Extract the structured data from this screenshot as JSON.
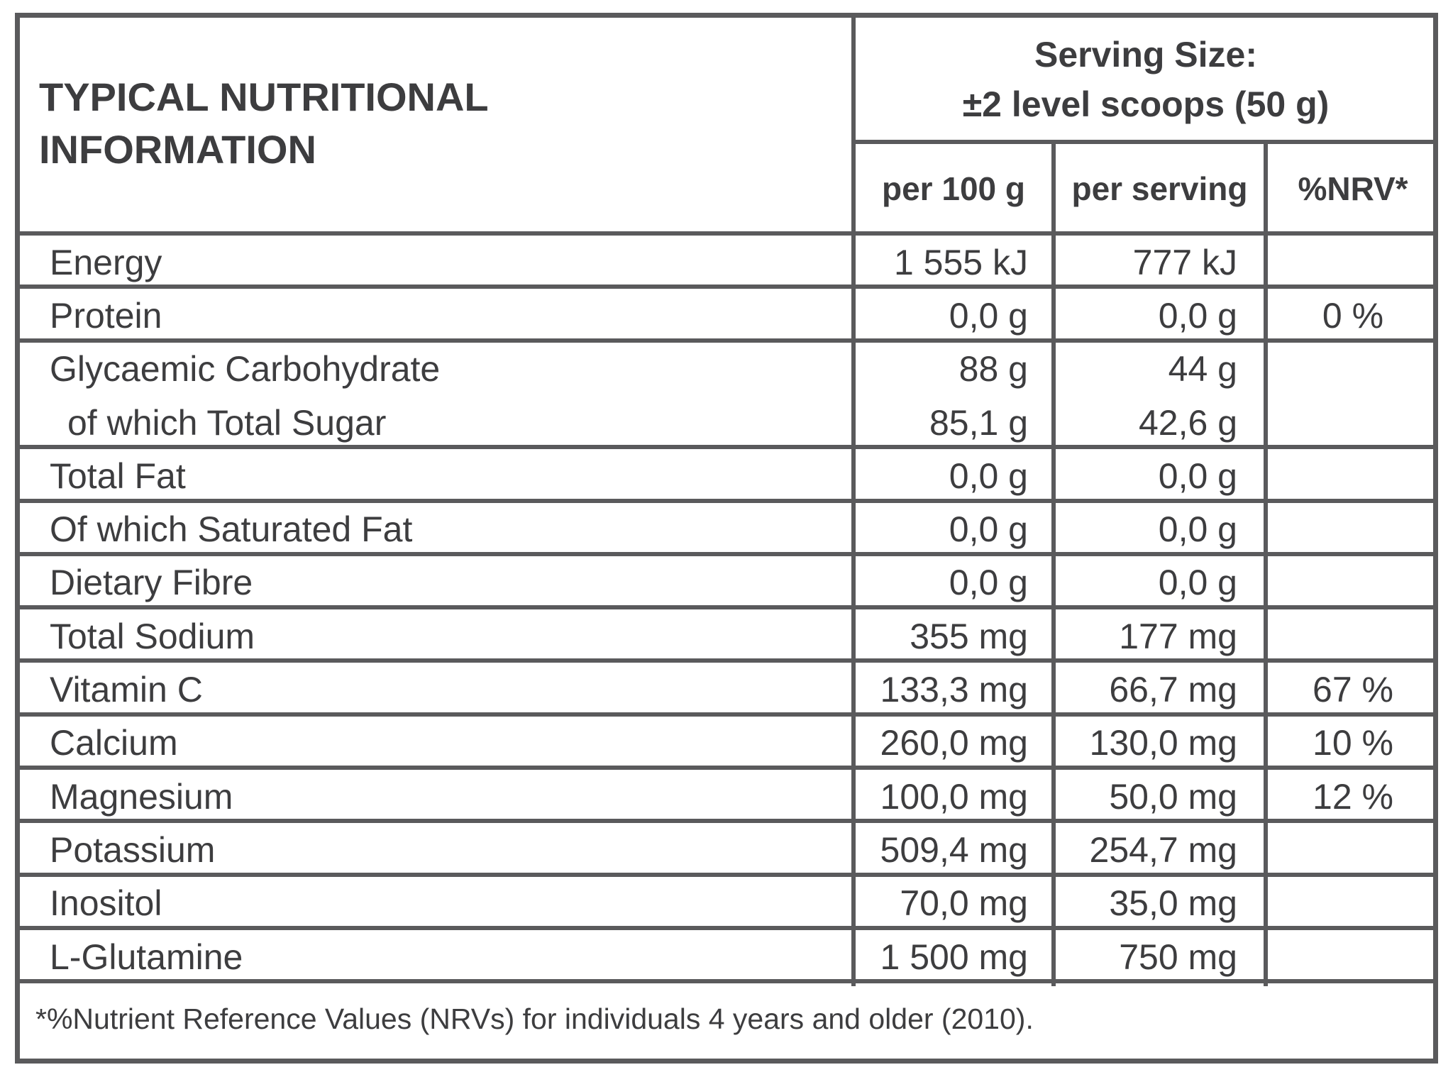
{
  "header": {
    "title": "TYPICAL NUTRITIONAL INFORMATION",
    "serving_size": [
      "Serving Size:",
      "±2 level scoops (50 g)"
    ],
    "columns": [
      "per 100 g",
      "per serving",
      "%NRV*"
    ]
  },
  "table": {
    "rows": [
      {
        "lines": [
          {
            "label": "Energy",
            "per_100g": "1 555 kJ",
            "per_serving": "777 kJ"
          }
        ]
      },
      {
        "lines": [
          {
            "label": "Protein",
            "per_100g": "0,0 g",
            "per_serving": "0,0 g",
            "nrv": "0 %"
          }
        ]
      },
      {
        "lines": [
          {
            "label": "Glycaemic Carbohydrate",
            "per_100g": "88 g",
            "per_serving": "44 g"
          },
          {
            "label": "of which Total Sugar",
            "per_100g": "85,1 g",
            "per_serving": "42,6 g"
          }
        ]
      },
      {
        "lines": [
          {
            "label": "Total Fat",
            "per_100g": "0,0 g",
            "per_serving": "0,0 g"
          }
        ]
      },
      {
        "lines": [
          {
            "label": "Of which Saturated Fat",
            "per_100g": "0,0 g",
            "per_serving": "0,0 g"
          }
        ]
      },
      {
        "lines": [
          {
            "label": "Dietary Fibre",
            "per_100g": "0,0 g",
            "per_serving": "0,0 g"
          }
        ]
      },
      {
        "lines": [
          {
            "label": "Total Sodium",
            "per_100g": "355 mg",
            "per_serving": "177 mg"
          }
        ]
      },
      {
        "lines": [
          {
            "label": "Vitamin C",
            "per_100g": "133,3 mg",
            "per_serving": "66,7 mg",
            "nrv": "67 %"
          }
        ]
      },
      {
        "lines": [
          {
            "label": "Calcium",
            "per_100g": "260,0 mg",
            "per_serving": "130,0 mg",
            "nrv": "10 %"
          }
        ]
      },
      {
        "lines": [
          {
            "label": "Magnesium",
            "per_100g": "100,0 mg",
            "per_serving": "50,0 mg",
            "nrv": "12 %"
          }
        ]
      },
      {
        "lines": [
          {
            "label": "Potassium",
            "per_100g": "509,4 mg",
            "per_serving": "254,7 mg"
          }
        ]
      },
      {
        "lines": [
          {
            "label": "Inositol",
            "per_100g": "70,0 mg",
            "per_serving": "35,0 mg"
          }
        ]
      },
      {
        "lines": [
          {
            "label": "L-Glutamine",
            "per_100g": "1 500 mg",
            "per_serving": "750 mg"
          }
        ]
      }
    ]
  },
  "footnote": "*%Nutrient Reference Values (NRVs) for individuals 4 years and older (2010)."
}
